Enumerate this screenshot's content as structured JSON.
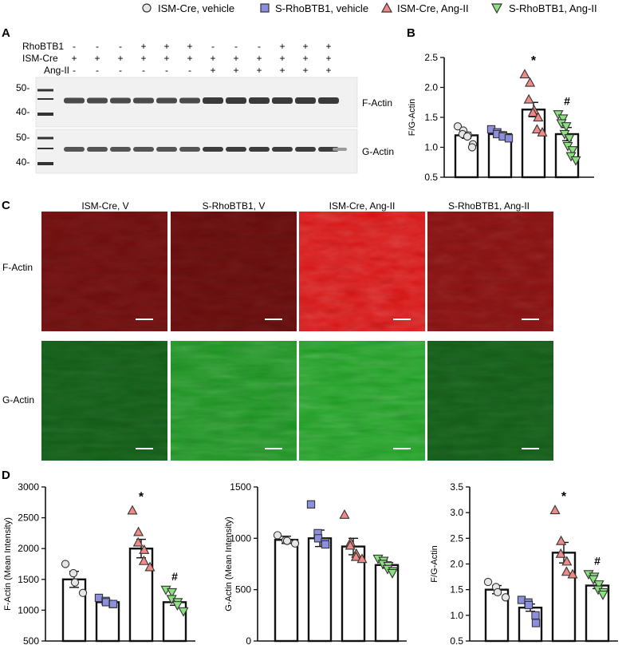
{
  "legend": [
    {
      "label": "ISM-Cre, vehicle",
      "marker": "circle",
      "color": "#e6e6e6"
    },
    {
      "label": "S-RhoBTB1, vehicle",
      "marker": "square",
      "color": "#8b8fdd"
    },
    {
      "label": "ISM-Cre, Ang-II",
      "marker": "triangle-up",
      "color": "#f08a86"
    },
    {
      "label": "S-RhoBTB1, Ang-II",
      "marker": "triangle-down",
      "color": "#8be07f"
    }
  ],
  "panel_letters": {
    "a": "A",
    "b": "B",
    "c": "C",
    "d": "D"
  },
  "blot": {
    "row_labels": [
      "RhoBTB1",
      "ISM-Cre",
      "Ang-II"
    ],
    "rows": [
      [
        "-",
        "-",
        "-",
        "+",
        "+",
        "+",
        "-",
        "-",
        "-",
        "+",
        "+",
        "+"
      ],
      [
        "+",
        "+",
        "+",
        "+",
        "+",
        "+",
        "+",
        "+",
        "+",
        "+",
        "+",
        "+"
      ],
      [
        "-",
        "-",
        "-",
        "-",
        "-",
        "-",
        "+",
        "+",
        "+",
        "+",
        "+",
        "+"
      ]
    ],
    "mw_top": [
      "50-",
      "40-"
    ],
    "mw_bottom": [
      "50-",
      "40-"
    ],
    "band_top": "F-Actin",
    "band_bottom": "G-Actin"
  },
  "micrographs": {
    "columns": [
      "ISM-Cre, V",
      "S-RhoBTB1, V",
      "ISM-Cre, Ang-II",
      "S-RhoBTB1, Ang-II"
    ],
    "rows": [
      "F-Actin",
      "G-Actin"
    ],
    "red_intensity": [
      0.35,
      0.3,
      1.0,
      0.5
    ],
    "green_intensity": [
      0.35,
      0.8,
      0.9,
      0.35
    ]
  },
  "chart_data": [
    {
      "id": "B",
      "type": "bar",
      "ylabel": "F/G-Actin",
      "ylim": [
        0.5,
        2.5
      ],
      "yticks": [
        0.5,
        1.0,
        1.5,
        2.0,
        2.5
      ],
      "tick_labels": [
        "0.5",
        "1.0",
        "1.5",
        "2.0",
        "2.5"
      ],
      "bars": [
        {
          "value": 1.2,
          "sem": 0.05,
          "points": [
            1.35,
            1.28,
            1.22,
            1.2,
            1.18,
            1.05,
            1.0
          ]
        },
        {
          "value": 1.22,
          "sem": 0.04,
          "points": [
            1.3,
            1.25,
            1.22,
            1.2,
            1.18,
            1.15
          ]
        },
        {
          "value": 1.63,
          "sem": 0.12,
          "points": [
            2.22,
            2.08,
            1.8,
            1.62,
            1.58,
            1.5,
            1.3,
            1.25
          ]
        },
        {
          "value": 1.22,
          "sem": 0.11,
          "points": [
            1.55,
            1.48,
            1.4,
            1.35,
            1.22,
            1.15,
            1.02,
            0.95,
            0.85,
            0.78
          ]
        }
      ],
      "annotations": [
        {
          "bar": 2,
          "text": "*"
        },
        {
          "bar": 3,
          "text": "#"
        }
      ]
    },
    {
      "id": "D1",
      "type": "bar",
      "ylabel": "F-Actin (Mean Intensity)",
      "ylim": [
        500,
        3000
      ],
      "yticks": [
        500,
        1000,
        1500,
        2000,
        2500,
        3000
      ],
      "tick_labels": [
        "500",
        "1000",
        "1500",
        "2000",
        "2500",
        "3000"
      ],
      "bars": [
        {
          "value": 1500,
          "sem": 130,
          "points": [
            1750,
            1600,
            1450,
            1280
          ]
        },
        {
          "value": 1130,
          "sem": 30,
          "points": [
            1200,
            1150,
            1130,
            1100,
            1100
          ]
        },
        {
          "value": 2000,
          "sem": 150,
          "points": [
            2620,
            2270,
            2100,
            1980,
            1800,
            1700
          ]
        },
        {
          "value": 1130,
          "sem": 50,
          "points": [
            1330,
            1290,
            1180,
            1130,
            1080,
            980
          ]
        }
      ],
      "annotations": [
        {
          "bar": 2,
          "text": "*"
        },
        {
          "bar": 3,
          "text": "#"
        }
      ]
    },
    {
      "id": "D2",
      "type": "bar",
      "ylabel": "G-Actin (Mean Intensity)",
      "ylim": [
        0,
        1500
      ],
      "yticks": [
        0,
        500,
        1000,
        1500
      ],
      "tick_labels": [
        "0",
        "500",
        "1000",
        "1500"
      ],
      "bars": [
        {
          "value": 985,
          "sem": 35,
          "points": [
            1030,
            980,
            975,
            950
          ]
        },
        {
          "value": 1000,
          "sem": 80,
          "points": [
            1330,
            1050,
            1000,
            960,
            940
          ]
        },
        {
          "value": 920,
          "sem": 80,
          "points": [
            1230,
            960,
            930,
            850,
            820,
            800
          ]
        },
        {
          "value": 740,
          "sem": 30,
          "points": [
            800,
            780,
            750,
            730,
            700,
            680,
            660
          ]
        }
      ],
      "annotations": []
    },
    {
      "id": "D3",
      "type": "bar",
      "ylabel": "F/G-Actin",
      "ylim": [
        0.5,
        3.5
      ],
      "yticks": [
        0.5,
        1.0,
        1.5,
        2.0,
        2.5,
        3.0,
        3.5
      ],
      "tick_labels": [
        "0.5",
        "1.0",
        "1.5",
        "2.0",
        "2.5",
        "3.0",
        "3.5"
      ],
      "bars": [
        {
          "value": 1.5,
          "sem": 0.08,
          "points": [
            1.65,
            1.55,
            1.45,
            1.35
          ]
        },
        {
          "value": 1.15,
          "sem": 0.07,
          "points": [
            1.3,
            1.25,
            1.2,
            1.0,
            0.85
          ]
        },
        {
          "value": 2.22,
          "sem": 0.2,
          "points": [
            3.05,
            2.45,
            2.2,
            2.05,
            1.85,
            1.8
          ]
        },
        {
          "value": 1.58,
          "sem": 0.06,
          "points": [
            1.8,
            1.75,
            1.7,
            1.6,
            1.5,
            1.45,
            1.4
          ]
        }
      ],
      "annotations": [
        {
          "bar": 2,
          "text": "*"
        },
        {
          "bar": 3,
          "text": "#"
        }
      ]
    }
  ]
}
